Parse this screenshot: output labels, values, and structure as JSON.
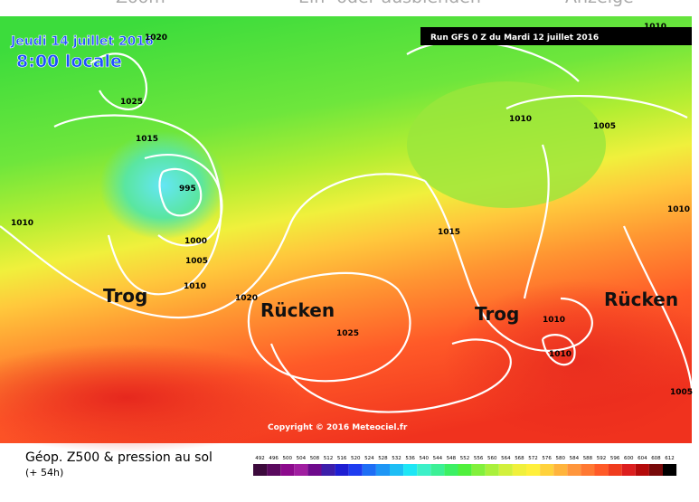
{
  "toolbar": {
    "items": [
      "Zoom",
      "Ein- oder ausblenden",
      "Anzeige"
    ]
  },
  "map": {
    "date": "Jeudi 14 juillet 2016",
    "time": "8:00 locale",
    "run": "Run GFS 0 Z du Mardi 12 juillet 2016",
    "isobar_labels": [
      1020,
      1010,
      1025,
      1010,
      1005,
      1015,
      995,
      1010,
      1010,
      1015,
      1000,
      1005,
      1010,
      1020,
      1010,
      1025,
      1010,
      1005
    ],
    "annotations": [
      "Trog",
      "Rücken",
      "Trog",
      "Rücken"
    ],
    "copyright": "Copyright © 2016 Meteociel.fr"
  },
  "legend": {
    "title": "Géop. Z500 & pression au sol",
    "lead": "(+ 54h)",
    "scale": [
      492,
      496,
      500,
      504,
      508,
      512,
      516,
      520,
      524,
      528,
      532,
      536,
      540,
      544,
      548,
      552,
      556,
      560,
      564,
      568,
      572,
      576,
      580,
      584,
      588,
      592,
      596,
      600,
      604,
      608,
      612
    ],
    "colors": [
      "#3c0a3c",
      "#5a0a5e",
      "#8c0a8c",
      "#a01ea0",
      "#6e0a8c",
      "#3c1eaa",
      "#1e1ed2",
      "#1e3cf0",
      "#1e6ef5",
      "#1e96f5",
      "#1ebef5",
      "#1ee6f5",
      "#3cf0c8",
      "#3cf096",
      "#3cf064",
      "#50f03c",
      "#82f03c",
      "#aaf03c",
      "#d2f03c",
      "#f0f03c",
      "#fff03c",
      "#ffd23c",
      "#ffb43c",
      "#ff963c",
      "#ff7832",
      "#ff5a28",
      "#f03c1e",
      "#dc1e1e",
      "#b40a0a",
      "#780a0a",
      "#000000"
    ]
  }
}
